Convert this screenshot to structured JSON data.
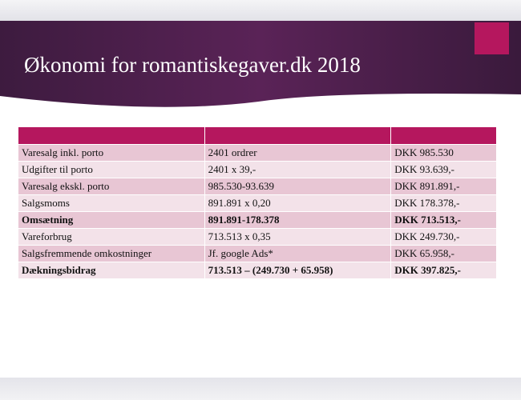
{
  "header": {
    "title": "Økonomi for romantiskegaver.dk 2018"
  },
  "table": {
    "rows": [
      [
        "Varesalg inkl. porto",
        "2401 ordrer",
        "DKK 985.530"
      ],
      [
        "Udgifter til porto",
        "2401 x 39,-",
        "DKK 93.639,-"
      ],
      [
        "Varesalg ekskl. porto",
        "985.530-93.639",
        "DKK 891.891,-"
      ],
      [
        "Salgsmoms",
        "891.891 x 0,20",
        "DKK 178.378,-"
      ],
      [
        "Omsætning",
        "891.891-178.378",
        "DKK 713.513,-"
      ],
      [
        "Vareforbrug",
        "713.513 x 0,35",
        "DKK 249.730,-"
      ],
      [
        "Salgsfremmende omkostninger",
        "Jf. google Ads*",
        "DKK 65.958,-"
      ],
      [
        "Dækningsbidrag",
        "713.513 – (249.730 + 65.958)",
        "DKK 397.825,-"
      ]
    ]
  }
}
